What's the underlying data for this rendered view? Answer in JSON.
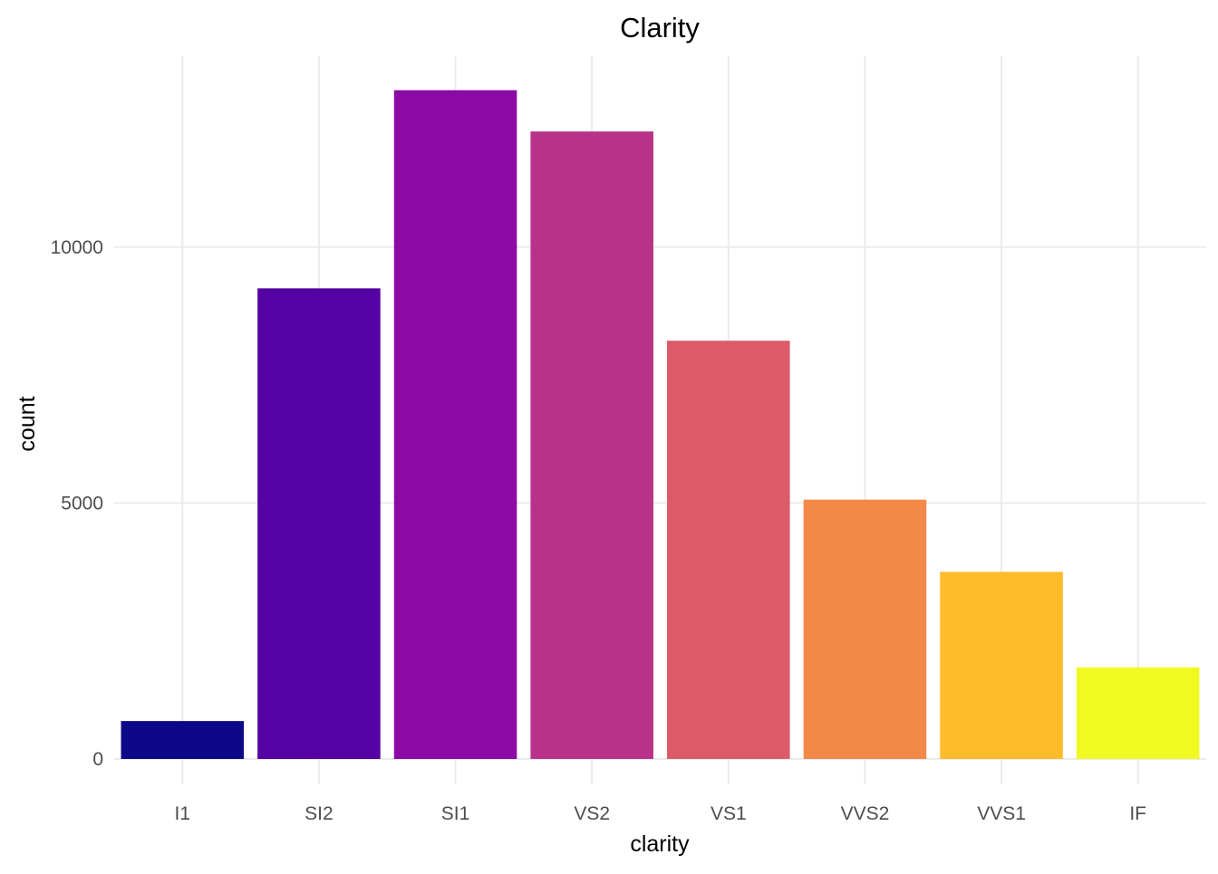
{
  "chart_data": {
    "type": "bar",
    "title": "Clarity",
    "xlabel": "clarity",
    "ylabel": "count",
    "categories": [
      "I1",
      "SI2",
      "SI1",
      "VS2",
      "VS1",
      "VVS2",
      "VVS1",
      "IF"
    ],
    "values": [
      741,
      9194,
      13065,
      12258,
      8171,
      5066,
      3655,
      1790
    ],
    "colors": [
      "#0D0887",
      "#5402A3",
      "#8B0AA5",
      "#B93289",
      "#DB5C68",
      "#F48849",
      "#FEBC2A",
      "#F0F921"
    ],
    "ylim": [
      0,
      13065
    ],
    "yticks": [
      "0",
      "5000",
      "10000"
    ],
    "ytick_values": [
      0,
      5000,
      10000
    ],
    "grid": true,
    "legend": "none"
  }
}
